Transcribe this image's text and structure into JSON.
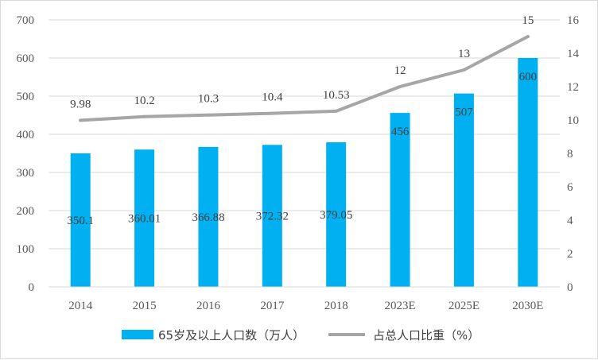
{
  "chart_data": {
    "type": "bar",
    "categories": [
      "2014",
      "2015",
      "2016",
      "2017",
      "2018",
      "2023E",
      "2025E",
      "2030E"
    ],
    "series": [
      {
        "name": "65岁及以上人口数（万人）",
        "type": "bar",
        "axis": "left",
        "color": "#00b0f0",
        "values": [
          350.1,
          360.01,
          366.88,
          372.32,
          379.05,
          456,
          507,
          600
        ],
        "labels": [
          "350.1",
          "360.01",
          "366.88",
          "372.32",
          "379.05",
          "456",
          "507",
          "600"
        ]
      },
      {
        "name": "占总人口比重（%）",
        "type": "line",
        "axis": "right",
        "color": "#a6a6a6",
        "values": [
          9.98,
          10.2,
          10.3,
          10.4,
          10.53,
          12,
          13,
          15
        ],
        "labels": [
          "9.98",
          "10.2",
          "10.3",
          "10.4",
          "10.53",
          "12",
          "13",
          "15"
        ]
      }
    ],
    "ylim": [
      0,
      700
    ],
    "y_ticks": [
      "0",
      "100",
      "200",
      "300",
      "400",
      "500",
      "600",
      "700"
    ],
    "y2lim": [
      0,
      16
    ],
    "y2_ticks": [
      "0",
      "2",
      "4",
      "6",
      "8",
      "10",
      "12",
      "14",
      "16"
    ],
    "grid": true,
    "legend": "bottom"
  }
}
